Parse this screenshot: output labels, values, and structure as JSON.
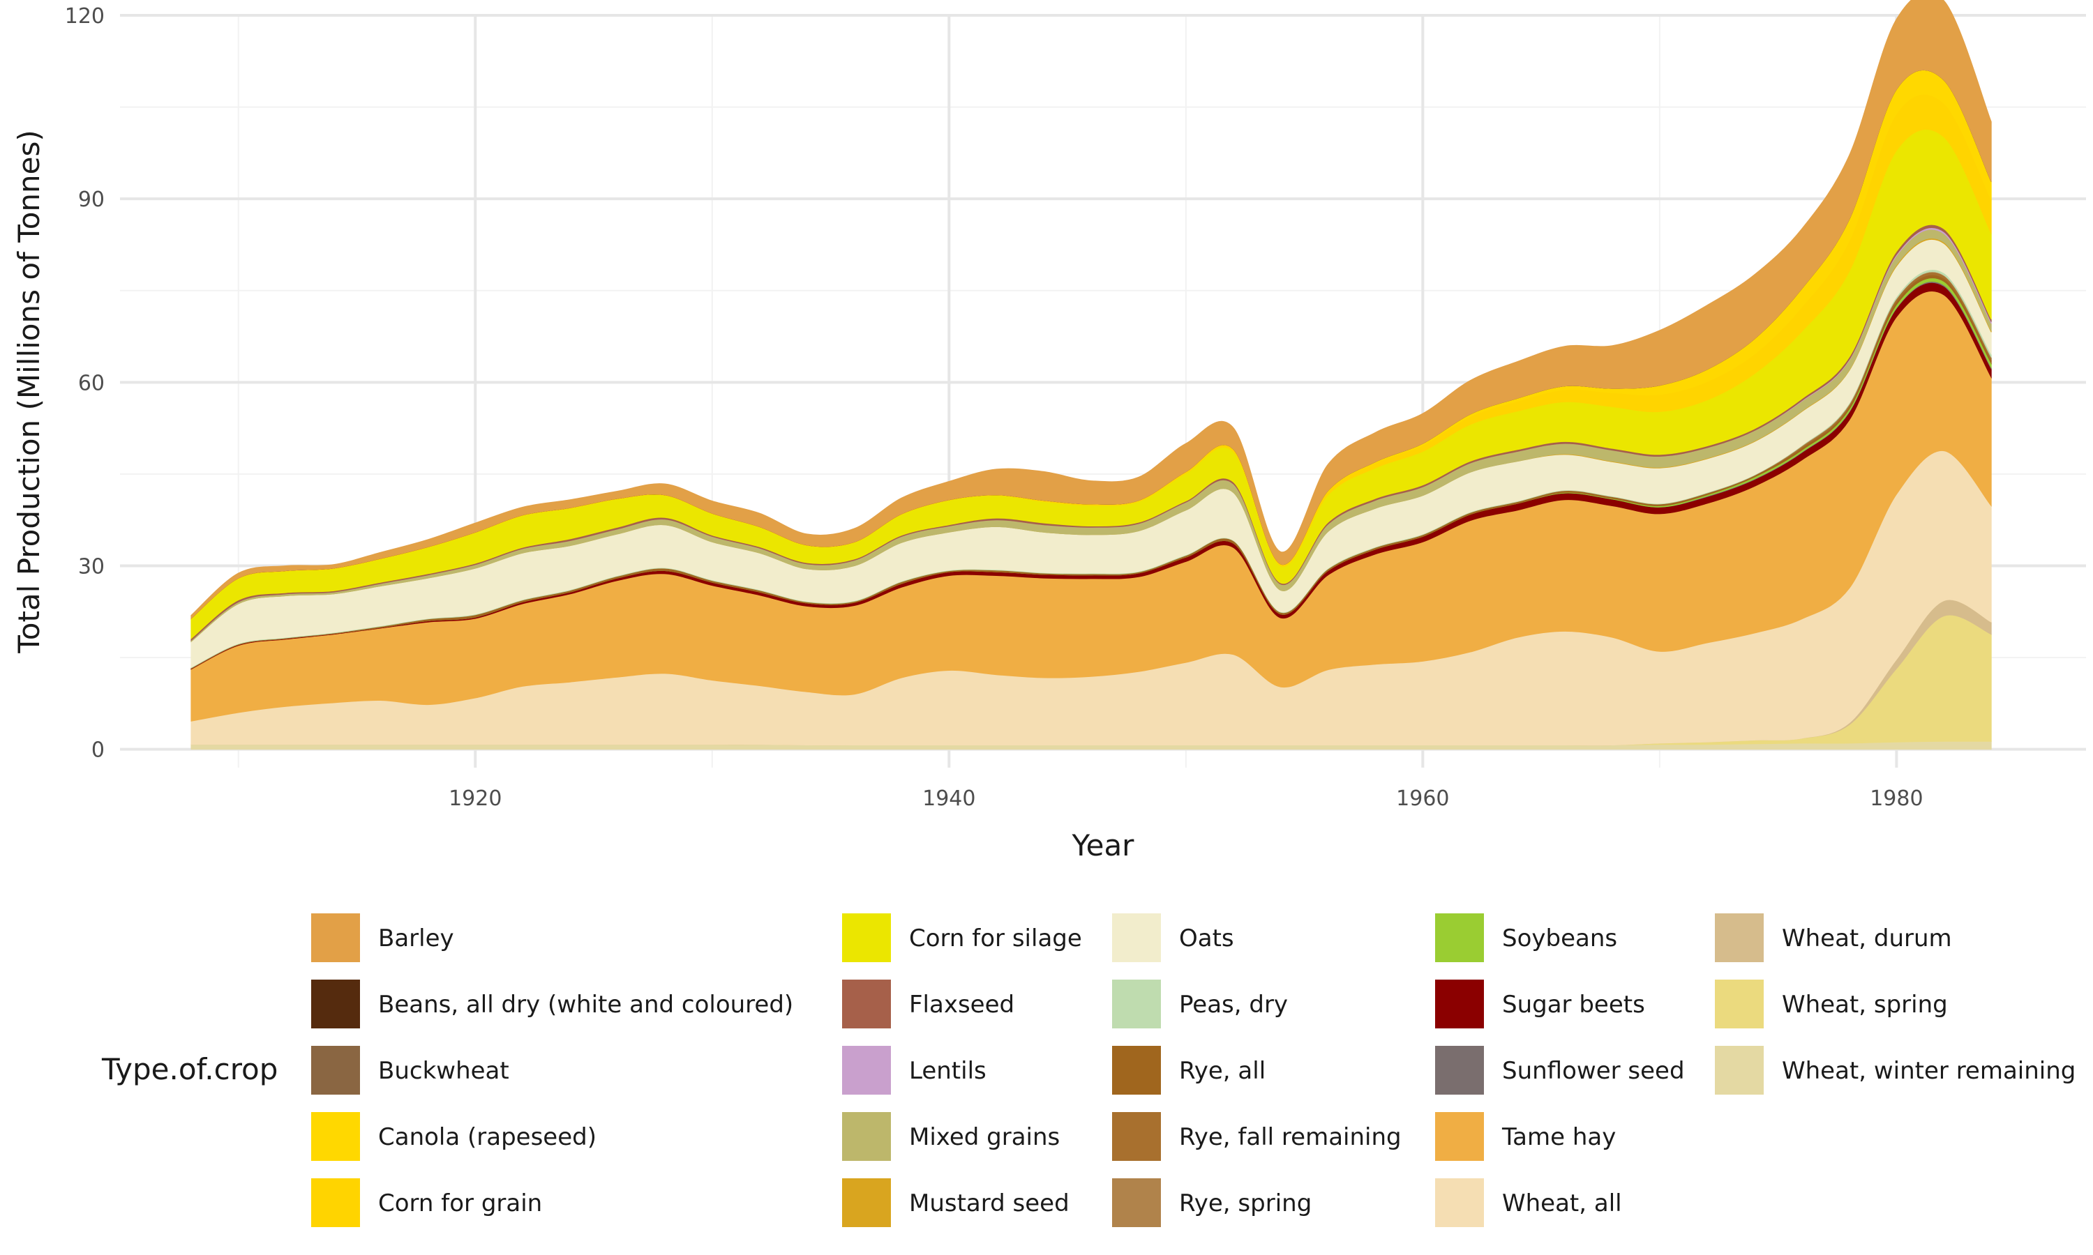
{
  "chart_data": {
    "type": "area",
    "title": "",
    "xlabel": "Year",
    "ylabel": "Total Production (Millions of Tonnes)",
    "xlim": [
      1905,
      1988
    ],
    "ylim": [
      -3,
      120
    ],
    "x_ticks": [
      1920,
      1940,
      1960,
      1980
    ],
    "y_ticks": [
      0,
      30,
      60,
      90,
      120
    ],
    "grid": true,
    "legend": {
      "title": "Type.of.crop",
      "position": "bottom"
    },
    "x": [
      1908,
      1910,
      1912,
      1914,
      1916,
      1918,
      1920,
      1922,
      1924,
      1926,
      1928,
      1930,
      1932,
      1934,
      1936,
      1938,
      1940,
      1942,
      1944,
      1946,
      1948,
      1950,
      1952,
      1954,
      1956,
      1958,
      1960,
      1962,
      1964,
      1966,
      1968,
      1970,
      1972,
      1974,
      1976,
      1978,
      1980,
      1982,
      1984
    ],
    "series": [
      {
        "name": "Wheat, winter remaining",
        "color": "#E4D9A3",
        "values": [
          0.8,
          0.8,
          0.8,
          0.8,
          0.8,
          0.8,
          0.8,
          0.8,
          0.8,
          0.8,
          0.8,
          0.8,
          0.8,
          0.7,
          0.7,
          0.7,
          0.7,
          0.7,
          0.7,
          0.7,
          0.7,
          0.7,
          0.7,
          0.7,
          0.7,
          0.7,
          0.7,
          0.7,
          0.7,
          0.7,
          0.7,
          0.8,
          0.8,
          0.9,
          1.0,
          1.0,
          1.2,
          1.3,
          1.3
        ]
      },
      {
        "name": "Wheat, spring",
        "color": "#EBDA7E",
        "values": [
          0,
          0,
          0,
          0,
          0,
          0,
          0,
          0,
          0,
          0,
          0,
          0,
          0,
          0,
          0,
          0,
          0,
          0,
          0,
          0,
          0,
          0,
          0,
          0,
          0,
          0,
          0,
          0,
          0,
          0,
          0,
          0.2,
          0.4,
          0.6,
          0.8,
          3.0,
          12.0,
          20.5,
          17.5
        ]
      },
      {
        "name": "Wheat, durum",
        "color": "#D6BC8C",
        "values": [
          0,
          0,
          0,
          0,
          0,
          0,
          0,
          0,
          0,
          0,
          0,
          0,
          0,
          0,
          0,
          0,
          0,
          0,
          0,
          0,
          0,
          0,
          0,
          0,
          0,
          0,
          0,
          0,
          0,
          0,
          0,
          0,
          0,
          0,
          0,
          0.3,
          1.5,
          2.5,
          2.0
        ]
      },
      {
        "name": "Wheat, all",
        "color": "#F5DEB3",
        "values": [
          3.8,
          5.2,
          6.2,
          6.8,
          7.2,
          6.5,
          7.6,
          9.5,
          10.2,
          11.0,
          11.6,
          10.5,
          9.6,
          8.7,
          8.3,
          11.0,
          12.2,
          11.5,
          11.0,
          11.2,
          12.0,
          13.5,
          14.8,
          9.5,
          12.3,
          13.2,
          13.7,
          15.2,
          17.6,
          18.6,
          17.6,
          15.0,
          16.2,
          17.5,
          19.5,
          22.0,
          27.0,
          24.5,
          19.0
        ]
      },
      {
        "name": "Tame hay",
        "color": "#F0AE44",
        "values": [
          8.5,
          11.0,
          11.0,
          11.2,
          11.8,
          13.5,
          13.0,
          13.5,
          14.4,
          15.8,
          16.3,
          15.5,
          14.8,
          14.0,
          14.5,
          14.8,
          15.5,
          16.2,
          16.3,
          16.0,
          15.5,
          16.5,
          17.5,
          11.3,
          15.5,
          18.0,
          19.5,
          21.5,
          20.8,
          21.5,
          21.5,
          22.5,
          22.8,
          24.0,
          26.0,
          27.5,
          29.0,
          25.5,
          21.0
        ]
      },
      {
        "name": "Sugar beets",
        "color": "#8B0000",
        "values": [
          0.1,
          0.1,
          0.1,
          0.1,
          0.1,
          0.2,
          0.2,
          0.3,
          0.3,
          0.4,
          0.5,
          0.5,
          0.5,
          0.5,
          0.5,
          0.6,
          0.6,
          0.6,
          0.6,
          0.6,
          0.6,
          0.7,
          0.7,
          0.6,
          0.7,
          0.8,
          0.9,
          1.0,
          1.1,
          1.1,
          1.1,
          1.1,
          1.1,
          1.1,
          1.2,
          1.3,
          1.4,
          1.4,
          1.4
        ]
      },
      {
        "name": "Sunflower seed",
        "color": "#7A6E6E",
        "values": [
          0,
          0,
          0,
          0,
          0,
          0,
          0,
          0,
          0,
          0,
          0,
          0,
          0,
          0,
          0,
          0,
          0,
          0,
          0,
          0,
          0,
          0,
          0,
          0,
          0,
          0,
          0,
          0,
          0,
          0,
          0,
          0,
          0.1,
          0.1,
          0.1,
          0.1,
          0.1,
          0.2,
          0.2
        ]
      },
      {
        "name": "Soybeans",
        "color": "#9ACD32",
        "values": [
          0,
          0,
          0,
          0,
          0,
          0,
          0,
          0,
          0,
          0,
          0,
          0,
          0,
          0,
          0,
          0,
          0,
          0,
          0,
          0,
          0,
          0,
          0,
          0,
          0,
          0,
          0,
          0,
          0,
          0.1,
          0.1,
          0.2,
          0.2,
          0.3,
          0.3,
          0.4,
          0.5,
          0.6,
          0.7
        ]
      },
      {
        "name": "Rye, all",
        "color": "#A0661E",
        "values": [
          0.1,
          0.1,
          0.1,
          0.1,
          0.2,
          0.3,
          0.4,
          0.3,
          0.3,
          0.3,
          0.4,
          0.3,
          0.3,
          0.2,
          0.2,
          0.3,
          0.2,
          0.3,
          0.2,
          0.2,
          0.2,
          0.3,
          0.4,
          0.3,
          0.3,
          0.3,
          0.3,
          0.3,
          0.3,
          0.3,
          0.3,
          0.3,
          0.3,
          0.3,
          0.4,
          0.4,
          0.5,
          0.5,
          0.5
        ]
      },
      {
        "name": "Rye, fall remaining",
        "color": "#A8702E",
        "values": [
          0,
          0,
          0,
          0,
          0,
          0,
          0,
          0,
          0,
          0,
          0,
          0,
          0,
          0,
          0,
          0,
          0,
          0,
          0,
          0,
          0,
          0,
          0,
          0,
          0,
          0,
          0,
          0,
          0,
          0,
          0,
          0,
          0,
          0,
          0.2,
          0.3,
          0.4,
          0.4,
          0.4
        ]
      },
      {
        "name": "Rye, spring",
        "color": "#B0834B",
        "values": [
          0,
          0,
          0,
          0,
          0,
          0,
          0,
          0,
          0,
          0,
          0,
          0,
          0,
          0,
          0,
          0,
          0,
          0,
          0,
          0,
          0,
          0,
          0,
          0,
          0,
          0,
          0,
          0,
          0,
          0,
          0,
          0,
          0,
          0,
          0.1,
          0.1,
          0.1,
          0.1,
          0.1
        ]
      },
      {
        "name": "Peas, dry",
        "color": "#BFDCAF",
        "values": [
          0.1,
          0.1,
          0.1,
          0.1,
          0.1,
          0.1,
          0.1,
          0.1,
          0.1,
          0.1,
          0.1,
          0.1,
          0.1,
          0.1,
          0.1,
          0.1,
          0.1,
          0.1,
          0.1,
          0.1,
          0.1,
          0.1,
          0.1,
          0.1,
          0.1,
          0.1,
          0.1,
          0.1,
          0.1,
          0.1,
          0.1,
          0.1,
          0.1,
          0.1,
          0.1,
          0.2,
          0.3,
          0.4,
          0.5
        ]
      },
      {
        "name": "Oats",
        "color": "#F2EDCC",
        "values": [
          4.2,
          6.5,
          6.8,
          6.3,
          6.5,
          6.6,
          7.5,
          7.6,
          7.2,
          6.8,
          7.0,
          6.2,
          6.0,
          5.3,
          5.7,
          6.3,
          6.2,
          7.0,
          6.6,
          6.3,
          6.6,
          7.3,
          7.8,
          3.5,
          6.0,
          6.3,
          6.3,
          6.5,
          6.5,
          5.8,
          5.6,
          5.8,
          5.5,
          5.4,
          5.5,
          5.3,
          5.0,
          4.8,
          3.6
        ]
      },
      {
        "name": "Mustard seed",
        "color": "#D9A51F",
        "values": [
          0,
          0,
          0,
          0,
          0,
          0,
          0,
          0,
          0,
          0,
          0,
          0,
          0,
          0,
          0,
          0,
          0,
          0,
          0,
          0,
          0,
          0,
          0,
          0,
          0,
          0,
          0,
          0,
          0,
          0.1,
          0.1,
          0.1,
          0.1,
          0.1,
          0.1,
          0.1,
          0.2,
          0.2,
          0.2
        ]
      },
      {
        "name": "Mixed grains",
        "color": "#BDB76B",
        "values": [
          0.2,
          0.3,
          0.3,
          0.3,
          0.4,
          0.5,
          0.6,
          0.7,
          0.8,
          0.8,
          0.9,
          0.9,
          0.8,
          0.8,
          0.9,
          1.0,
          1.0,
          1.1,
          1.2,
          1.2,
          1.2,
          1.3,
          1.4,
          1.0,
          1.2,
          1.3,
          1.4,
          1.5,
          1.6,
          1.7,
          1.8,
          1.8,
          1.7,
          1.7,
          1.6,
          1.6,
          1.5,
          1.4,
          1.2
        ]
      },
      {
        "name": "Lentils",
        "color": "#C9A0CD",
        "values": [
          0,
          0,
          0,
          0,
          0,
          0,
          0,
          0,
          0,
          0,
          0,
          0,
          0,
          0,
          0,
          0,
          0,
          0,
          0,
          0,
          0,
          0,
          0,
          0,
          0,
          0,
          0,
          0,
          0,
          0,
          0,
          0,
          0,
          0,
          0.1,
          0.1,
          0.2,
          0.3,
          0.3
        ]
      },
      {
        "name": "Flaxseed",
        "color": "#A6604A",
        "values": [
          0.3,
          0.3,
          0.2,
          0.2,
          0.2,
          0.2,
          0.2,
          0.2,
          0.3,
          0.3,
          0.3,
          0.2,
          0.2,
          0.2,
          0.2,
          0.2,
          0.2,
          0.3,
          0.3,
          0.2,
          0.2,
          0.2,
          0.3,
          0.2,
          0.3,
          0.3,
          0.3,
          0.3,
          0.3,
          0.3,
          0.3,
          0.3,
          0.3,
          0.3,
          0.3,
          0.4,
          0.5,
          0.5,
          0.4
        ]
      },
      {
        "name": "Corn for silage",
        "color": "#EBE600",
        "values": [
          3.2,
          3.5,
          3.5,
          3.6,
          3.8,
          4.3,
          5.0,
          5.2,
          5.0,
          4.6,
          3.6,
          3.5,
          3.2,
          2.8,
          2.7,
          3.4,
          4.0,
          3.7,
          3.5,
          3.4,
          3.4,
          4.5,
          5.0,
          2.8,
          4.5,
          5.0,
          5.5,
          6.0,
          6.3,
          6.5,
          6.8,
          7.0,
          7.5,
          9.0,
          11.0,
          14.0,
          16.5,
          15.0,
          14.0
        ]
      },
      {
        "name": "Corn for grain",
        "color": "#FFD400",
        "values": [
          0.1,
          0.1,
          0.1,
          0.1,
          0.1,
          0.1,
          0.1,
          0.1,
          0.1,
          0.1,
          0.1,
          0.1,
          0.1,
          0.1,
          0.1,
          0.1,
          0.1,
          0.1,
          0.2,
          0.2,
          0.2,
          0.3,
          0.4,
          0.3,
          0.6,
          0.8,
          1.0,
          1.3,
          1.6,
          2.0,
          2.3,
          2.8,
          3.0,
          3.2,
          4.0,
          5.0,
          6.0,
          5.5,
          5.5
        ]
      },
      {
        "name": "Canola (rapeseed)",
        "color": "#FFD800",
        "values": [
          0,
          0,
          0,
          0,
          0,
          0,
          0,
          0,
          0,
          0,
          0,
          0,
          0,
          0,
          0,
          0,
          0,
          0,
          0,
          0,
          0,
          0,
          0,
          0,
          0.1,
          0.2,
          0.3,
          0.4,
          0.5,
          0.6,
          0.7,
          1.5,
          2.0,
          2.5,
          3.0,
          3.5,
          4.0,
          3.8,
          3.0
        ]
      },
      {
        "name": "Buckwheat",
        "color": "#8A6642",
        "values": [
          0,
          0,
          0,
          0,
          0,
          0,
          0,
          0,
          0,
          0,
          0,
          0,
          0,
          0,
          0,
          0,
          0,
          0,
          0,
          0,
          0,
          0,
          0,
          0,
          0,
          0,
          0,
          0,
          0,
          0,
          0,
          0,
          0,
          0,
          0,
          0,
          0,
          0,
          0
        ]
      },
      {
        "name": "Beans, all dry (white and coloured)",
        "color": "#552B0E",
        "values": [
          0,
          0,
          0,
          0,
          0,
          0,
          0,
          0,
          0,
          0,
          0,
          0,
          0,
          0,
          0,
          0,
          0,
          0,
          0,
          0,
          0,
          0,
          0,
          0,
          0,
          0,
          0,
          0,
          0,
          0,
          0,
          0,
          0,
          0,
          0,
          0,
          0,
          0,
          0
        ]
      },
      {
        "name": "Barley",
        "color": "#E2A047",
        "values": [
          0.5,
          0.8,
          0.8,
          0.6,
          1.0,
          1.2,
          1.5,
          1.3,
          1.3,
          1.2,
          1.8,
          2.0,
          2.2,
          1.8,
          2.2,
          2.6,
          3.0,
          4.2,
          4.7,
          3.8,
          3.8,
          4.6,
          3.5,
          2.0,
          4.3,
          4.8,
          4.9,
          5.5,
          6.0,
          6.5,
          7.0,
          9.0,
          10.5,
          10.5,
          9.8,
          10.5,
          11.5,
          13.0,
          9.8
        ]
      }
    ]
  }
}
